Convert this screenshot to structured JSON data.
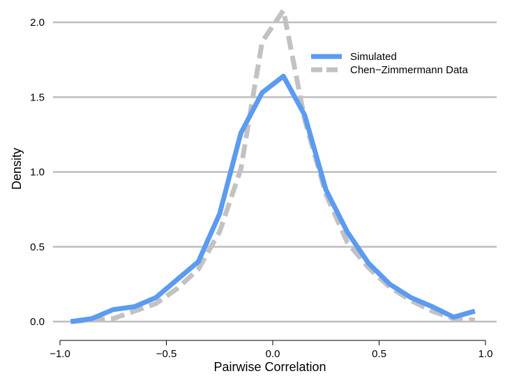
{
  "chart_data": {
    "type": "line",
    "xlabel": "Pairwise Correlation",
    "ylabel": "Density",
    "xlim": [
      -1.0,
      1.0
    ],
    "ylim": [
      0,
      2.0
    ],
    "x_ticks": [
      "−1.0",
      "−0.5",
      "0.0",
      "0.5",
      "1.0"
    ],
    "x_tick_values": [
      -1.0,
      -0.5,
      0.0,
      0.5,
      1.0
    ],
    "y_ticks": [
      "0.0",
      "0.5",
      "1.0",
      "1.5",
      "2.0"
    ],
    "y_tick_values": [
      0.0,
      0.5,
      1.0,
      1.5,
      2.0
    ],
    "grid": "horizontal",
    "legend_position": "top-right",
    "series": [
      {
        "name": "Simulated",
        "color": "#5b9bf0",
        "style": "solid",
        "x": [
          -0.95,
          -0.85,
          -0.75,
          -0.65,
          -0.55,
          -0.45,
          -0.35,
          -0.25,
          -0.15,
          -0.05,
          0.05,
          0.15,
          0.25,
          0.35,
          0.45,
          0.55,
          0.65,
          0.75,
          0.85,
          0.95
        ],
        "y": [
          0.0,
          0.02,
          0.08,
          0.1,
          0.16,
          0.28,
          0.4,
          0.72,
          1.26,
          1.53,
          1.64,
          1.38,
          0.88,
          0.6,
          0.39,
          0.25,
          0.16,
          0.1,
          0.03,
          0.07
        ]
      },
      {
        "name": "Chen−Zimmermann Data",
        "color": "#c2c2c2",
        "style": "dashed",
        "x": [
          -0.95,
          -0.85,
          -0.75,
          -0.65,
          -0.55,
          -0.45,
          -0.35,
          -0.25,
          -0.15,
          -0.05,
          0.05,
          0.15,
          0.25,
          0.35,
          0.45,
          0.55,
          0.65,
          0.75,
          0.85,
          0.95
        ],
        "y": [
          0.0,
          0.01,
          0.02,
          0.07,
          0.12,
          0.22,
          0.35,
          0.6,
          1.02,
          1.87,
          2.08,
          1.35,
          0.85,
          0.53,
          0.36,
          0.23,
          0.14,
          0.07,
          0.02,
          0.01
        ]
      }
    ]
  }
}
